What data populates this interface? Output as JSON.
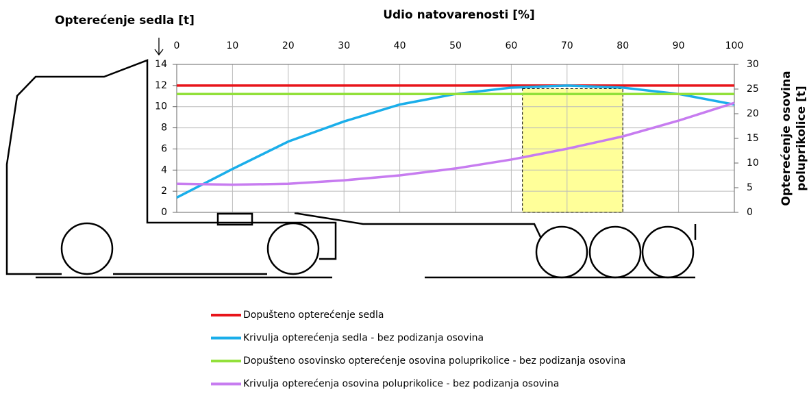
{
  "chart_data": {
    "type": "line",
    "title": "Udio natovarenosti [%]",
    "y_label": "Opterećenje sedla [t]",
    "y2_label": [
      "Opterećenje osovina",
      "poluprikolice [t]"
    ],
    "x": [
      0,
      10,
      20,
      30,
      40,
      50,
      60,
      70,
      80,
      90,
      100
    ],
    "xlim": [
      0,
      100
    ],
    "xticks": [
      0,
      10,
      20,
      30,
      40,
      50,
      60,
      70,
      80,
      90,
      100
    ],
    "ylim": [
      0,
      14
    ],
    "yticks": [
      0,
      2,
      4,
      6,
      8,
      10,
      12,
      14
    ],
    "y2lim": [
      0,
      30
    ],
    "y2ticks": [
      0,
      5,
      10,
      15,
      20,
      25,
      30
    ],
    "grid": true,
    "highlight": {
      "x": [
        62,
        80
      ],
      "y": [
        0,
        11.7
      ],
      "color": "#ffff99"
    },
    "series": [
      {
        "name": "Dopušteno opterećenje sedla",
        "color": "#e8141a",
        "values": [
          12,
          12,
          12,
          12,
          12,
          12,
          12,
          12,
          12,
          12,
          12
        ]
      },
      {
        "name": "Krivulja opterećenja sedla - bez podizanja osovina",
        "color": "#1aaeea",
        "values": [
          1.4,
          4.1,
          6.7,
          8.6,
          10.2,
          11.2,
          11.8,
          12.0,
          11.8,
          11.2,
          10.2
        ]
      },
      {
        "name": "Dopušteno osovinsko opterećenje osovina poluprikolice - bez podizanja osovina",
        "color": "#92e03a",
        "axis": "y2",
        "values": [
          24,
          24,
          24,
          24,
          24,
          24,
          24,
          24,
          24,
          24,
          24
        ]
      },
      {
        "name": "Krivulja opterećenja osovina poluprikolice - bez podizanja osovina",
        "color": "#c77cf0",
        "axis": "y2",
        "values": [
          5.8,
          5.6,
          5.8,
          6.5,
          7.5,
          8.9,
          10.7,
          12.9,
          15.4,
          18.6,
          22.2
        ]
      }
    ]
  }
}
